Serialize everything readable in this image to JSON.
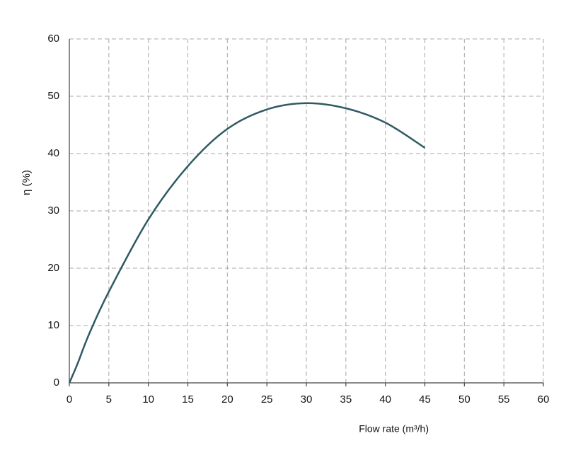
{
  "chart_data": {
    "type": "line",
    "x_label": "Flow rate (m³/h)",
    "y_label": "η (%)",
    "x": [
      0,
      1,
      2.5,
      5,
      10,
      15,
      20,
      25,
      30,
      35,
      40,
      45
    ],
    "series": [
      {
        "color": "#2f5a63",
        "values": [
          0,
          3.2,
          8.5,
          15.9,
          28.5,
          37.8,
          44.3,
          47.7,
          48.8,
          47.9,
          45.4,
          41.0
        ]
      }
    ],
    "xlim": [
      0,
      60
    ],
    "xticks": [
      0,
      5,
      10,
      15,
      20,
      25,
      30,
      35,
      40,
      45,
      50,
      55,
      60
    ],
    "ylim": [
      0,
      60
    ],
    "yticks": [
      0,
      10,
      20,
      30,
      40,
      50,
      60
    ],
    "grid": true
  }
}
